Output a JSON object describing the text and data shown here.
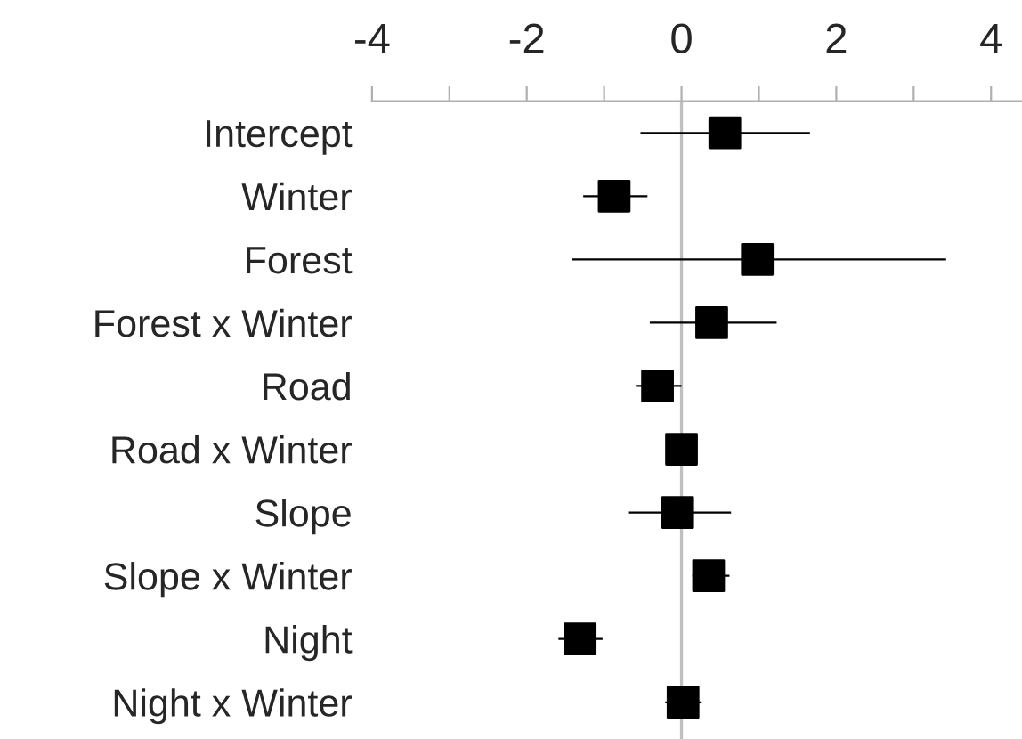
{
  "chart_data": {
    "type": "scatter",
    "orientation": "horizontal",
    "categories": [
      "Intercept",
      "Winter",
      "Forest",
      "Forest x Winter",
      "Road",
      "Road x Winter",
      "Slope",
      "Slope x Winter",
      "Night",
      "Night x Winter"
    ],
    "values": [
      0.56,
      -0.87,
      0.98,
      0.39,
      -0.31,
      0.0,
      -0.05,
      0.35,
      -1.31,
      0.02
    ],
    "errors": [
      [
        -0.53,
        1.66
      ],
      [
        -1.27,
        -0.44
      ],
      [
        -1.42,
        3.42
      ],
      [
        -0.41,
        1.23
      ],
      [
        -0.59,
        0.0
      ],
      null,
      [
        -0.69,
        0.64
      ],
      [
        0.14,
        0.62
      ],
      [
        -1.59,
        -1.02
      ],
      [
        -0.21,
        0.25
      ]
    ],
    "color": "#000000",
    "marker": "square",
    "xlim": [
      -4,
      4.4
    ],
    "xticks": [
      -4,
      {
        "value": -3,
        "label": null
      },
      -2,
      {
        "value": -1,
        "label": null
      },
      0,
      {
        "value": 1,
        "label": null
      },
      2,
      {
        "value": 3,
        "label": null
      },
      4
    ],
    "ref_lines": [
      {
        "axis": "x",
        "value": 0,
        "color": "#c0c0c0"
      }
    ],
    "grid": false,
    "legend": false
  }
}
